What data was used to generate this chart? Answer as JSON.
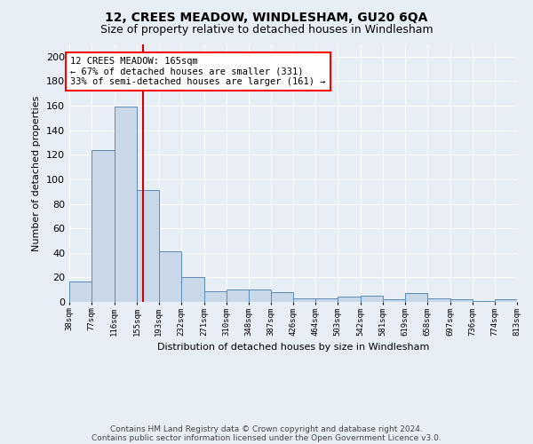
{
  "title1": "12, CREES MEADOW, WINDLESHAM, GU20 6QA",
  "title2": "Size of property relative to detached houses in Windlesham",
  "xlabel": "Distribution of detached houses by size in Windlesham",
  "ylabel": "Number of detached properties",
  "footer1": "Contains HM Land Registry data © Crown copyright and database right 2024.",
  "footer2": "Contains public sector information licensed under the Open Government Licence v3.0.",
  "annotation_line1": "12 CREES MEADOW: 165sqm",
  "annotation_line2": "← 67% of detached houses are smaller (331)",
  "annotation_line3": "33% of semi-detached houses are larger (161) →",
  "bar_color": "#c8d8e8",
  "bar_edge_color": "#5a8ab5",
  "vline_color": "#cc0000",
  "vline_x": 165,
  "bin_edges": [
    38,
    77,
    116,
    155,
    193,
    232,
    271,
    310,
    348,
    387,
    426,
    464,
    503,
    542,
    581,
    619,
    658,
    697,
    736,
    774,
    813
  ],
  "bar_heights": [
    17,
    124,
    159,
    91,
    41,
    20,
    9,
    10,
    10,
    8,
    3,
    3,
    4,
    5,
    2,
    7,
    3,
    2,
    1,
    2
  ],
  "ylim": [
    0,
    210
  ],
  "yticks": [
    0,
    20,
    40,
    60,
    80,
    100,
    120,
    140,
    160,
    180,
    200
  ],
  "bg_color": "#e8eef5",
  "plot_bg_color": "#e8eef5"
}
